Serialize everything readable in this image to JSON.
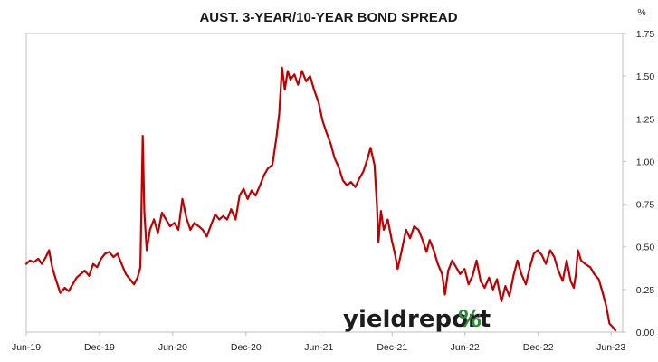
{
  "chart_data": {
    "type": "line",
    "title": "AUST. 3-YEAR/10-YEAR BOND SPREAD",
    "unit_label": "%",
    "y_axis_position": "right",
    "ylim": [
      0,
      1.75
    ],
    "y_ticks": [
      "0.00",
      "0.25",
      "0.50",
      "0.75",
      "1.00",
      "1.25",
      "1.50",
      "1.75"
    ],
    "xlim": [
      "2019-06-01",
      "2023-06-30"
    ],
    "x_ticks": [
      {
        "date": "2019-06-01",
        "label": "Jun-19"
      },
      {
        "date": "2019-12-01",
        "label": "Dec-19"
      },
      {
        "date": "2020-06-01",
        "label": "Jun-20"
      },
      {
        "date": "2020-12-01",
        "label": "Dec-20"
      },
      {
        "date": "2021-06-01",
        "label": "Jun-21"
      },
      {
        "date": "2021-12-01",
        "label": "Dec-21"
      },
      {
        "date": "2022-06-01",
        "label": "Jun-22"
      },
      {
        "date": "2022-12-01",
        "label": "Dec-22"
      },
      {
        "date": "2023-06-01",
        "label": "Jun-23"
      }
    ],
    "grid": false,
    "legend": "none",
    "line_color": "#c00000",
    "series": [
      {
        "points": [
          [
            "2019-06-01",
            0.4
          ],
          [
            "2019-06-10",
            0.42
          ],
          [
            "2019-06-20",
            0.41
          ],
          [
            "2019-07-01",
            0.43
          ],
          [
            "2019-07-10",
            0.4
          ],
          [
            "2019-07-20",
            0.44
          ],
          [
            "2019-07-28",
            0.48
          ],
          [
            "2019-08-05",
            0.38
          ],
          [
            "2019-08-15",
            0.3
          ],
          [
            "2019-08-25",
            0.23
          ],
          [
            "2019-09-05",
            0.26
          ],
          [
            "2019-09-15",
            0.24
          ],
          [
            "2019-09-25",
            0.28
          ],
          [
            "2019-10-05",
            0.32
          ],
          [
            "2019-10-15",
            0.34
          ],
          [
            "2019-10-25",
            0.36
          ],
          [
            "2019-11-05",
            0.33
          ],
          [
            "2019-11-15",
            0.4
          ],
          [
            "2019-11-25",
            0.38
          ],
          [
            "2019-12-05",
            0.43
          ],
          [
            "2019-12-15",
            0.46
          ],
          [
            "2019-12-25",
            0.47
          ],
          [
            "2020-01-05",
            0.44
          ],
          [
            "2020-01-15",
            0.46
          ],
          [
            "2020-01-25",
            0.4
          ],
          [
            "2020-02-05",
            0.34
          ],
          [
            "2020-02-15",
            0.31
          ],
          [
            "2020-02-25",
            0.28
          ],
          [
            "2020-03-05",
            0.32
          ],
          [
            "2020-03-12",
            0.38
          ],
          [
            "2020-03-18",
            1.15
          ],
          [
            "2020-03-22",
            0.7
          ],
          [
            "2020-03-28",
            0.48
          ],
          [
            "2020-04-05",
            0.6
          ],
          [
            "2020-04-15",
            0.66
          ],
          [
            "2020-04-25",
            0.58
          ],
          [
            "2020-05-05",
            0.7
          ],
          [
            "2020-05-15",
            0.66
          ],
          [
            "2020-05-25",
            0.62
          ],
          [
            "2020-06-05",
            0.64
          ],
          [
            "2020-06-15",
            0.6
          ],
          [
            "2020-06-25",
            0.78
          ],
          [
            "2020-07-05",
            0.67
          ],
          [
            "2020-07-15",
            0.6
          ],
          [
            "2020-07-25",
            0.64
          ],
          [
            "2020-08-05",
            0.62
          ],
          [
            "2020-08-15",
            0.6
          ],
          [
            "2020-08-25",
            0.56
          ],
          [
            "2020-09-05",
            0.63
          ],
          [
            "2020-09-15",
            0.69
          ],
          [
            "2020-09-25",
            0.66
          ],
          [
            "2020-10-05",
            0.68
          ],
          [
            "2020-10-15",
            0.66
          ],
          [
            "2020-10-25",
            0.72
          ],
          [
            "2020-11-05",
            0.66
          ],
          [
            "2020-11-15",
            0.8
          ],
          [
            "2020-11-25",
            0.84
          ],
          [
            "2020-12-05",
            0.78
          ],
          [
            "2020-12-15",
            0.83
          ],
          [
            "2020-12-25",
            0.8
          ],
          [
            "2021-01-05",
            0.86
          ],
          [
            "2021-01-15",
            0.92
          ],
          [
            "2021-01-25",
            0.96
          ],
          [
            "2021-02-05",
            0.98
          ],
          [
            "2021-02-15",
            1.14
          ],
          [
            "2021-02-22",
            1.28
          ],
          [
            "2021-03-01",
            1.55
          ],
          [
            "2021-03-08",
            1.42
          ],
          [
            "2021-03-15",
            1.53
          ],
          [
            "2021-03-22",
            1.48
          ],
          [
            "2021-04-01",
            1.51
          ],
          [
            "2021-04-10",
            1.45
          ],
          [
            "2021-04-20",
            1.53
          ],
          [
            "2021-04-30",
            1.47
          ],
          [
            "2021-05-10",
            1.5
          ],
          [
            "2021-05-20",
            1.42
          ],
          [
            "2021-06-01",
            1.34
          ],
          [
            "2021-06-10",
            1.24
          ],
          [
            "2021-06-20",
            1.17
          ],
          [
            "2021-07-01",
            1.1
          ],
          [
            "2021-07-10",
            1.02
          ],
          [
            "2021-07-20",
            0.97
          ],
          [
            "2021-07-31",
            0.89
          ],
          [
            "2021-08-10",
            0.86
          ],
          [
            "2021-08-20",
            0.88
          ],
          [
            "2021-08-31",
            0.85
          ],
          [
            "2021-09-10",
            0.9
          ],
          [
            "2021-09-20",
            0.94
          ],
          [
            "2021-10-01",
            1.02
          ],
          [
            "2021-10-08",
            1.08
          ],
          [
            "2021-10-18",
            0.98
          ],
          [
            "2021-10-24",
            0.75
          ],
          [
            "2021-10-28",
            0.53
          ],
          [
            "2021-11-03",
            0.71
          ],
          [
            "2021-11-10",
            0.6
          ],
          [
            "2021-11-20",
            0.66
          ],
          [
            "2021-11-30",
            0.54
          ],
          [
            "2021-12-08",
            0.46
          ],
          [
            "2021-12-15",
            0.37
          ],
          [
            "2021-12-25",
            0.48
          ],
          [
            "2022-01-05",
            0.6
          ],
          [
            "2022-01-15",
            0.55
          ],
          [
            "2022-01-25",
            0.62
          ],
          [
            "2022-02-05",
            0.6
          ],
          [
            "2022-02-15",
            0.54
          ],
          [
            "2022-02-25",
            0.47
          ],
          [
            "2022-03-05",
            0.54
          ],
          [
            "2022-03-15",
            0.48
          ],
          [
            "2022-03-25",
            0.4
          ],
          [
            "2022-04-05",
            0.34
          ],
          [
            "2022-04-12",
            0.22
          ],
          [
            "2022-04-20",
            0.36
          ],
          [
            "2022-04-30",
            0.42
          ],
          [
            "2022-05-10",
            0.38
          ],
          [
            "2022-05-20",
            0.34
          ],
          [
            "2022-05-31",
            0.37
          ],
          [
            "2022-06-10",
            0.28
          ],
          [
            "2022-06-20",
            0.33
          ],
          [
            "2022-06-30",
            0.42
          ],
          [
            "2022-07-10",
            0.3
          ],
          [
            "2022-07-20",
            0.26
          ],
          [
            "2022-07-31",
            0.32
          ],
          [
            "2022-08-10",
            0.25
          ],
          [
            "2022-08-20",
            0.31
          ],
          [
            "2022-08-31",
            0.18
          ],
          [
            "2022-09-10",
            0.27
          ],
          [
            "2022-09-20",
            0.21
          ],
          [
            "2022-09-30",
            0.33
          ],
          [
            "2022-10-10",
            0.42
          ],
          [
            "2022-10-20",
            0.34
          ],
          [
            "2022-10-31",
            0.28
          ],
          [
            "2022-11-10",
            0.38
          ],
          [
            "2022-11-20",
            0.46
          ],
          [
            "2022-11-30",
            0.48
          ],
          [
            "2022-12-10",
            0.45
          ],
          [
            "2022-12-20",
            0.4
          ],
          [
            "2022-12-31",
            0.48
          ],
          [
            "2023-01-10",
            0.44
          ],
          [
            "2023-01-20",
            0.36
          ],
          [
            "2023-01-31",
            0.3
          ],
          [
            "2023-02-10",
            0.42
          ],
          [
            "2023-02-20",
            0.3
          ],
          [
            "2023-02-28",
            0.26
          ],
          [
            "2023-03-05",
            0.34
          ],
          [
            "2023-03-10",
            0.48
          ],
          [
            "2023-03-18",
            0.42
          ],
          [
            "2023-03-28",
            0.4
          ],
          [
            "2023-04-10",
            0.38
          ],
          [
            "2023-04-20",
            0.34
          ],
          [
            "2023-05-01",
            0.31
          ],
          [
            "2023-05-10",
            0.24
          ],
          [
            "2023-05-20",
            0.15
          ],
          [
            "2023-05-28",
            0.05
          ],
          [
            "2023-06-05",
            0.03
          ],
          [
            "2023-06-12",
            0.01
          ]
        ]
      }
    ]
  },
  "watermark": {
    "word": "yieldreport",
    "symbol": "%"
  }
}
